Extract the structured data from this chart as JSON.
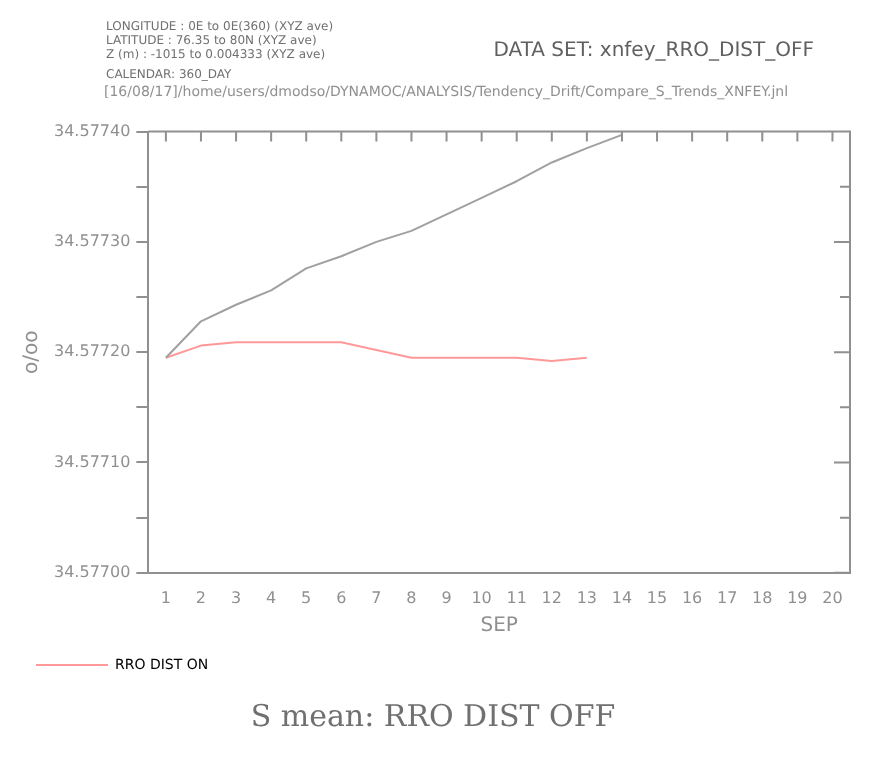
{
  "chart_data": {
    "type": "line",
    "title": "S mean: RRO DIST OFF",
    "annotations": [
      "LONGITUDE : 0E to 0E(360) (XYZ ave)",
      "LATITUDE : 76.35 to 80N (XYZ ave)",
      "Z (m) : -1015 to 0.004333 (XYZ ave)",
      "CALENDAR: 360_DAY",
      "DATA SET: xnfey_RRO_DIST_OFF",
      "[16/08/17]/home/users/dmodso/DYNAMOC/ANALYSIS/Tendency_Drift/Compare_S_Trends_XNFEY.jnl"
    ],
    "xlabel": "SEP",
    "ylabel": "o/oo",
    "x": [
      1,
      2,
      3,
      4,
      5,
      6,
      7,
      8,
      9,
      10,
      11,
      12,
      13,
      14
    ],
    "series": [
      {
        "color": "#a0a0a0",
        "values": [
          34.577195,
          34.577228,
          34.577243,
          34.577256,
          34.577276,
          34.577287,
          34.5773,
          34.57731,
          34.577325,
          34.57734,
          34.577355,
          34.577372,
          34.577385,
          34.577397
        ]
      },
      {
        "name": "RRO DIST ON",
        "color": "#ff9999",
        "values": [
          34.577195,
          34.577206,
          34.577209,
          34.577209,
          34.577209,
          34.577209,
          34.577202,
          34.577195,
          34.577195,
          34.577195,
          34.577195,
          34.577192,
          34.577195,
          null
        ]
      }
    ],
    "xlim": [
      0.5,
      20.5
    ],
    "xticks": [
      1,
      2,
      3,
      4,
      5,
      6,
      7,
      8,
      9,
      10,
      11,
      12,
      13,
      14,
      15,
      16,
      17,
      18,
      19,
      20
    ],
    "ylim": [
      34.577,
      34.5774
    ],
    "yticks": [
      {
        "value": 34.577,
        "label": "34.57700"
      },
      {
        "value": 34.57705,
        "label": null
      },
      {
        "value": 34.5771,
        "label": "34.57710"
      },
      {
        "value": 34.57715,
        "label": null
      },
      {
        "value": 34.5772,
        "label": "34.57720"
      },
      {
        "value": 34.57725,
        "label": null
      },
      {
        "value": 34.5773,
        "label": "34.57730"
      },
      {
        "value": 34.57735,
        "label": null
      },
      {
        "value": 34.5774,
        "label": "34.57740"
      }
    ],
    "grid": false,
    "legend": "bottom left",
    "marker": "none",
    "line_style": "solid"
  }
}
